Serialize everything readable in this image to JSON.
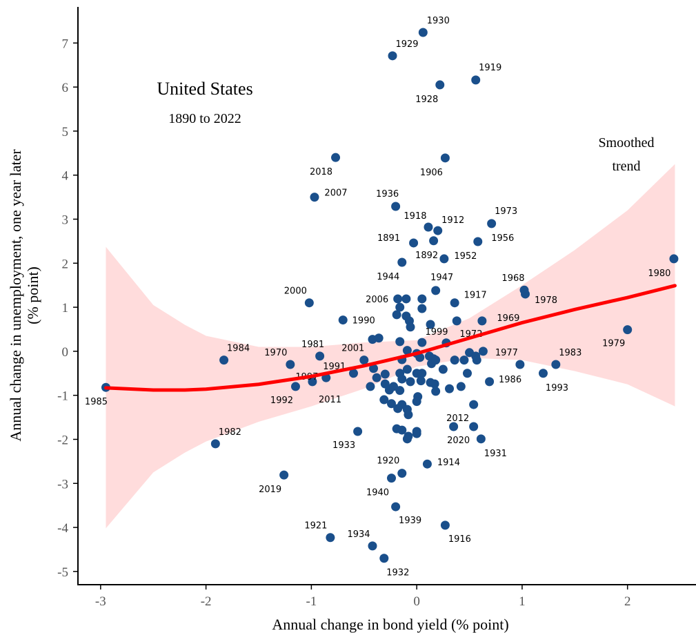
{
  "chart_data": {
    "type": "scatter",
    "annotations": [
      "United States",
      "1890 to 2022",
      "Smoothed",
      "trend"
    ],
    "x_label": "Annual change in bond yield (% point)",
    "y_label": [
      "Annual change in unemployment, one year later",
      "(% point)"
    ],
    "xlim": [
      -3.215,
      2.65
    ],
    "ylim": [
      -5.3,
      7.82
    ],
    "xticks": [
      -3,
      -2,
      -1,
      0,
      1,
      2
    ],
    "yticks": [
      -5,
      -4,
      -3,
      -2,
      -1,
      0,
      1,
      2,
      3,
      4,
      5,
      6,
      7
    ],
    "color": "#1a4f8b",
    "labels": [
      "1930",
      "1929",
      "1919",
      "1928",
      "2018",
      "1906",
      "2007",
      "1936",
      "1918",
      "1912",
      "1973",
      "1891",
      "1956",
      "1892",
      "1952",
      "1944",
      "1980",
      "1968",
      "1978",
      "1947",
      "2000",
      "2006",
      "1917",
      "1969",
      "1990",
      "1999",
      "1979",
      "1972",
      "1981",
      "1984",
      "2001",
      "1977",
      "1970",
      "1983",
      "1991",
      "1997",
      "1992",
      "2011",
      "1986",
      "1993",
      "1985",
      "2012",
      "2020",
      "1931",
      "1933",
      "1982",
      "1920",
      "1914",
      "1940",
      "2019",
      "1939",
      "1921",
      "1916",
      "1934",
      "1932",
      null,
      null,
      null,
      null,
      null,
      null,
      null,
      null,
      null,
      null,
      null,
      null,
      null,
      null,
      null,
      null,
      null,
      null,
      null,
      null,
      null,
      null,
      null,
      null,
      null,
      null,
      null,
      null,
      null,
      null,
      null,
      null,
      null,
      null,
      null,
      null,
      null,
      null,
      null,
      null,
      null,
      null,
      null,
      null,
      null,
      null,
      null,
      null,
      null,
      null,
      null,
      null,
      null,
      null,
      null,
      null,
      null,
      null,
      null,
      null,
      null,
      null,
      null,
      null
    ],
    "x": [
      0.06,
      -0.23,
      0.56,
      0.22,
      -0.77,
      0.27,
      -0.97,
      -0.2,
      0.11,
      0.2,
      0.71,
      -0.03,
      0.58,
      0.16,
      0.26,
      -0.14,
      2.44,
      1.02,
      1.03,
      0.18,
      -1.02,
      -0.18,
      0.36,
      0.62,
      -0.7,
      0.13,
      2.0,
      0.28,
      -0.92,
      -1.83,
      -0.5,
      0.63,
      -1.2,
      1.32,
      -0.86,
      -0.99,
      -1.15,
      -0.6,
      0.69,
      1.2,
      -2.95,
      0.35,
      0.54,
      0.61,
      -0.56,
      -1.91,
      -0.14,
      0.1,
      -0.24,
      -1.26,
      -0.2,
      -0.82,
      0.27,
      -0.42,
      -0.31,
      -0.1,
      0.05,
      -0.16,
      -0.19,
      -0.1,
      -0.07,
      -0.06,
      0.05,
      0.38,
      -0.42,
      -0.36,
      -0.16,
      0.05,
      -0.09,
      0.0,
      0.03,
      0.12,
      0.16,
      0.14,
      0.18,
      0.36,
      0.45,
      0.5,
      0.56,
      0.57,
      0.25,
      0.48,
      0.98,
      -0.41,
      -0.38,
      -0.3,
      -0.3,
      -0.14,
      -0.16,
      -0.09,
      -0.14,
      -0.22,
      -0.16,
      -0.26,
      -0.44,
      0.0,
      0.05,
      0.04,
      0.13,
      0.17,
      -0.06,
      0.18,
      0.31,
      0.42,
      -0.31,
      -0.24,
      -0.14,
      -0.18,
      -0.09,
      0.01,
      0.0,
      -0.08,
      0.54,
      -0.19,
      -0.14,
      0.0,
      0.0,
      -0.08,
      -0.09
    ],
    "y": [
      7.24,
      6.71,
      6.16,
      6.05,
      4.4,
      4.39,
      3.5,
      3.29,
      2.82,
      2.74,
      2.9,
      2.46,
      2.49,
      2.51,
      2.1,
      2.02,
      2.1,
      1.39,
      1.3,
      1.38,
      1.1,
      1.19,
      1.1,
      0.69,
      0.71,
      0.61,
      0.49,
      0.19,
      -0.11,
      -0.2,
      -0.2,
      0.0,
      -0.3,
      -0.3,
      -0.6,
      -0.69,
      -0.8,
      -0.5,
      -0.69,
      -0.5,
      -0.82,
      -1.71,
      -1.71,
      -1.99,
      -1.82,
      -2.1,
      -2.77,
      -2.56,
      -2.88,
      -2.81,
      -3.53,
      -4.23,
      -3.95,
      -4.42,
      -4.7,
      1.19,
      1.19,
      1.0,
      0.83,
      0.8,
      0.69,
      0.55,
      0.97,
      0.69,
      0.27,
      0.3,
      0.22,
      0.2,
      0.02,
      -0.05,
      -0.14,
      -0.11,
      -0.17,
      -0.28,
      -0.2,
      -0.2,
      -0.2,
      -0.03,
      -0.11,
      -0.2,
      -0.41,
      -0.5,
      -0.3,
      -0.39,
      -0.6,
      -0.52,
      -0.74,
      -0.19,
      -0.5,
      -0.41,
      -0.63,
      -0.8,
      -0.89,
      -0.88,
      -0.8,
      -0.5,
      -0.5,
      -0.67,
      -0.71,
      -0.74,
      -0.69,
      -0.91,
      -0.85,
      -0.8,
      -1.1,
      -1.19,
      -1.21,
      -1.3,
      -1.32,
      -1.03,
      -1.14,
      -1.44,
      -1.21,
      -1.76,
      -1.79,
      -1.82,
      -1.87,
      -1.93,
      -1.99
    ],
    "trend": {
      "color": "#ff0000",
      "band_color": "#ffdcdc",
      "x": [
        -2.95,
        -2.5,
        -2.2,
        -2,
        -1.5,
        -1,
        -0.5,
        0,
        0.5,
        1,
        1.5,
        2,
        2.45
      ],
      "y": [
        -0.83,
        -0.88,
        -0.88,
        -0.86,
        -0.75,
        -0.57,
        -0.33,
        -0.05,
        0.3,
        0.65,
        0.95,
        1.22,
        1.49
      ],
      "upper": [
        2.37,
        1.05,
        0.6,
        0.35,
        0.1,
        0.1,
        0.2,
        0.25,
        0.75,
        1.5,
        2.3,
        3.2,
        4.25
      ],
      "lower": [
        -4.02,
        -2.75,
        -2.3,
        -2.05,
        -1.6,
        -1.25,
        -0.85,
        -0.35,
        -0.15,
        -0.2,
        -0.45,
        -0.75,
        -1.25
      ]
    }
  }
}
